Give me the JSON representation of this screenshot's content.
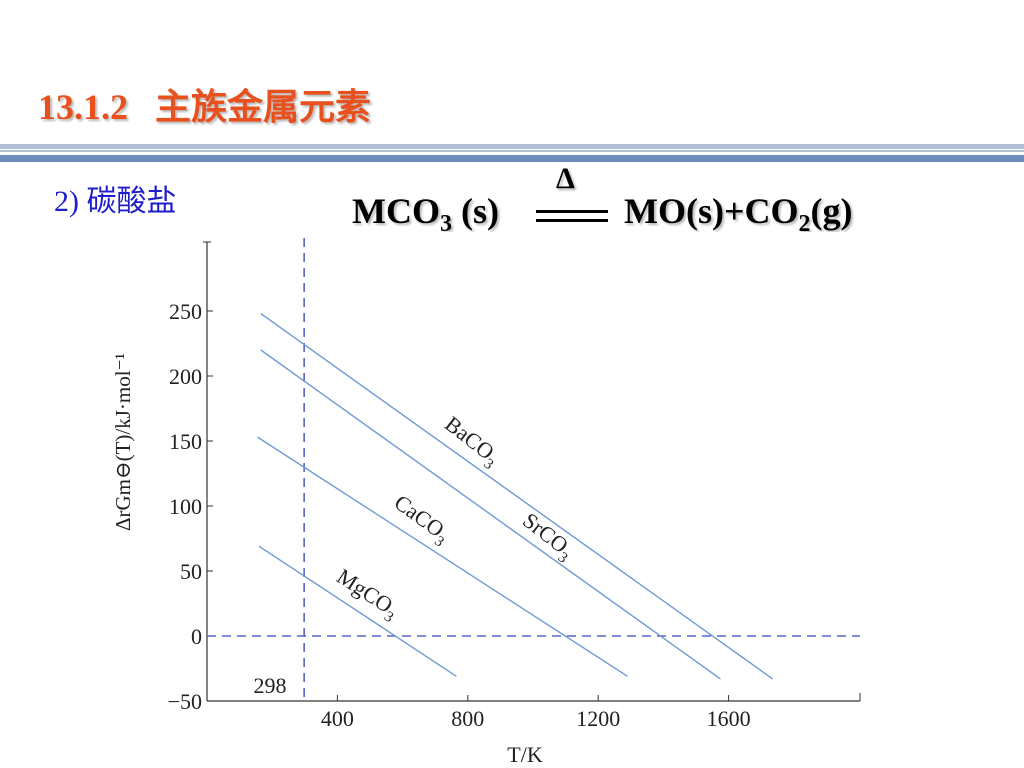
{
  "slide": {
    "title": "13.1.2   主族金属元素",
    "section": "2)  碳酸盐",
    "title_color": "#e8501e",
    "section_color": "#1f1fc9"
  },
  "equation": {
    "left_formula": "MCO",
    "left_sub": "3",
    "left_state": " (s)",
    "condition": "Δ",
    "right_a": "MO(s)+CO",
    "right_sub": "2",
    "right_b": "(g)"
  },
  "chart_data": {
    "type": "line",
    "xlabel": "T/K",
    "ylabel": "ΔrGm⊖(T)/kJ·mol⁻¹",
    "xlim": [
      0,
      2000
    ],
    "ylim": [
      -50,
      300
    ],
    "x_ticks": [
      400,
      800,
      1200,
      1600
    ],
    "y_ticks": [
      -50,
      0,
      50,
      100,
      150,
      200,
      250
    ],
    "grid": false,
    "reference_lines": [
      {
        "axis": "x",
        "value": 298,
        "label": "298",
        "style": "dashed"
      },
      {
        "axis": "y",
        "value": 0,
        "style": "dashed"
      }
    ],
    "series": [
      {
        "name": "BaCO3",
        "x": [
          165,
          1735
        ],
        "y": [
          248,
          -33
        ]
      },
      {
        "name": "SrCO3",
        "x": [
          165,
          1575
        ],
        "y": [
          220,
          -33
        ]
      },
      {
        "name": "CaCO3",
        "x": [
          155,
          1290
        ],
        "y": [
          153,
          -31
        ]
      },
      {
        "name": "MgCO3",
        "x": [
          160,
          765
        ],
        "y": [
          69,
          -31
        ]
      }
    ],
    "colors": {
      "line": "#6d9bd4",
      "reference": "#5a64c8",
      "axis": "#333333"
    }
  }
}
